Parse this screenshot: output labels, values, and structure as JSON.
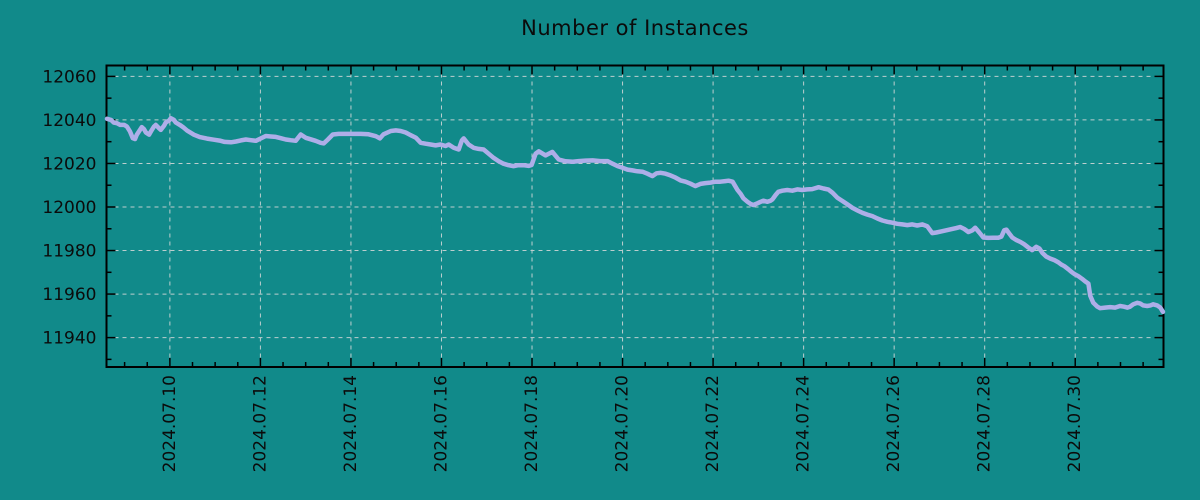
{
  "title": "Number of Instances",
  "colors": {
    "background": "#118a8a",
    "line": "#aeaee8",
    "grid": "#becfcf",
    "axis": "#000000",
    "text": "#0b0b0b"
  },
  "chart_data": {
    "type": "line",
    "title": "Number of Instances",
    "series_name": "Number of Instances",
    "x_unit": "day of July 2024 (fractional; 32.0 = Aug 1)",
    "xlabel": "",
    "ylabel": "",
    "grid": true,
    "legend": "none",
    "xlim": [
      8.6,
      31.95
    ],
    "ylim": [
      11926.5,
      12065.0
    ],
    "yticks": [
      11940,
      11960,
      11980,
      12000,
      12020,
      12040,
      12060
    ],
    "y_minor_step": 10,
    "x_minor_step": 0.5,
    "xticks": [
      {
        "value": 10,
        "label": "2024.07.10"
      },
      {
        "value": 12,
        "label": "2024.07.12"
      },
      {
        "value": 14,
        "label": "2024.07.14"
      },
      {
        "value": 16,
        "label": "2024.07.16"
      },
      {
        "value": 18,
        "label": "2024.07.18"
      },
      {
        "value": 20,
        "label": "2024.07.20"
      },
      {
        "value": 22,
        "label": "2024.07.22"
      },
      {
        "value": 24,
        "label": "2024.07.24"
      },
      {
        "value": 26,
        "label": "2024.07.26"
      },
      {
        "value": 28,
        "label": "2024.07.28"
      },
      {
        "value": 30,
        "label": "2024.07.30"
      }
    ],
    "points_format": "[day_of_july_2024, instances]",
    "points": [
      [
        8.61,
        12040.5
      ],
      [
        8.7,
        12040.0
      ],
      [
        8.76,
        12038.8
      ],
      [
        8.83,
        12038.5
      ],
      [
        8.9,
        12037.7
      ],
      [
        8.99,
        12037.7
      ],
      [
        9.05,
        12037.0
      ],
      [
        9.12,
        12034.7
      ],
      [
        9.18,
        12031.6
      ],
      [
        9.23,
        12031.2
      ],
      [
        9.27,
        12033.2
      ],
      [
        9.34,
        12035.4
      ],
      [
        9.38,
        12036.7
      ],
      [
        9.43,
        12035.7
      ],
      [
        9.47,
        12034.2
      ],
      [
        9.54,
        12033.2
      ],
      [
        9.58,
        12034.7
      ],
      [
        9.65,
        12037.0
      ],
      [
        9.69,
        12037.7
      ],
      [
        9.76,
        12036.2
      ],
      [
        9.8,
        12035.4
      ],
      [
        9.87,
        12037.3
      ],
      [
        9.91,
        12038.8
      ],
      [
        9.98,
        12039.7
      ],
      [
        10.02,
        12040.8
      ],
      [
        10.09,
        12040.0
      ],
      [
        10.13,
        12038.8
      ],
      [
        10.22,
        12037.7
      ],
      [
        10.29,
        12036.7
      ],
      [
        10.38,
        12035.1
      ],
      [
        10.53,
        12033.2
      ],
      [
        10.66,
        12032.1
      ],
      [
        10.82,
        12031.4
      ],
      [
        10.97,
        12030.9
      ],
      [
        11.1,
        12030.5
      ],
      [
        11.21,
        12029.9
      ],
      [
        11.35,
        12029.7
      ],
      [
        11.46,
        12030.1
      ],
      [
        11.57,
        12030.6
      ],
      [
        11.68,
        12031.0
      ],
      [
        11.79,
        12030.7
      ],
      [
        11.9,
        12030.4
      ],
      [
        12.01,
        12031.5
      ],
      [
        12.12,
        12032.6
      ],
      [
        12.23,
        12032.4
      ],
      [
        12.34,
        12032.2
      ],
      [
        12.45,
        12031.6
      ],
      [
        12.56,
        12031.0
      ],
      [
        12.67,
        12030.7
      ],
      [
        12.78,
        12030.4
      ],
      [
        12.89,
        12033.3
      ],
      [
        13.0,
        12031.8
      ],
      [
        13.11,
        12031.1
      ],
      [
        13.22,
        12030.4
      ],
      [
        13.33,
        12029.5
      ],
      [
        13.4,
        12029.2
      ],
      [
        13.49,
        12031.0
      ],
      [
        13.6,
        12033.3
      ],
      [
        13.73,
        12033.6
      ],
      [
        13.89,
        12033.6
      ],
      [
        14.04,
        12033.6
      ],
      [
        14.22,
        12033.6
      ],
      [
        14.39,
        12033.4
      ],
      [
        14.55,
        12032.5
      ],
      [
        14.64,
        12031.5
      ],
      [
        14.72,
        12033.4
      ],
      [
        14.88,
        12034.9
      ],
      [
        14.99,
        12035.2
      ],
      [
        15.1,
        12034.9
      ],
      [
        15.21,
        12034.2
      ],
      [
        15.32,
        12033.0
      ],
      [
        15.43,
        12031.9
      ],
      [
        15.54,
        12029.5
      ],
      [
        15.65,
        12029.1
      ],
      [
        15.76,
        12028.7
      ],
      [
        15.87,
        12028.3
      ],
      [
        15.98,
        12028.7
      ],
      [
        16.09,
        12028.0
      ],
      [
        16.16,
        12028.7
      ],
      [
        16.27,
        12027.2
      ],
      [
        16.38,
        12026.4
      ],
      [
        16.45,
        12030.6
      ],
      [
        16.49,
        12031.5
      ],
      [
        16.6,
        12028.7
      ],
      [
        16.71,
        12027.2
      ],
      [
        16.82,
        12026.7
      ],
      [
        16.93,
        12026.4
      ],
      [
        17.04,
        12024.5
      ],
      [
        17.15,
        12022.6
      ],
      [
        17.26,
        12021.1
      ],
      [
        17.37,
        12019.9
      ],
      [
        17.48,
        12019.2
      ],
      [
        17.59,
        12018.8
      ],
      [
        17.7,
        12019.2
      ],
      [
        17.81,
        12019.2
      ],
      [
        17.93,
        12018.9
      ],
      [
        17.99,
        12019.3
      ],
      [
        18.08,
        12024.5
      ],
      [
        18.15,
        12025.6
      ],
      [
        18.3,
        12023.7
      ],
      [
        18.45,
        12025.3
      ],
      [
        18.59,
        12021.8
      ],
      [
        18.74,
        12021.0
      ],
      [
        18.9,
        12020.8
      ],
      [
        19.03,
        12021.1
      ],
      [
        19.18,
        12021.3
      ],
      [
        19.34,
        12021.4
      ],
      [
        19.51,
        12021.1
      ],
      [
        19.67,
        12021.1
      ],
      [
        19.78,
        12019.9
      ],
      [
        19.89,
        12018.8
      ],
      [
        20.0,
        12018.0
      ],
      [
        20.11,
        12017.2
      ],
      [
        20.22,
        12016.8
      ],
      [
        20.33,
        12016.4
      ],
      [
        20.44,
        12016.2
      ],
      [
        20.55,
        12015.3
      ],
      [
        20.66,
        12014.2
      ],
      [
        20.75,
        12015.5
      ],
      [
        20.84,
        12015.7
      ],
      [
        20.95,
        12015.3
      ],
      [
        21.06,
        12014.5
      ],
      [
        21.17,
        12013.5
      ],
      [
        21.28,
        12012.2
      ],
      [
        21.39,
        12011.6
      ],
      [
        21.5,
        12010.7
      ],
      [
        21.61,
        12009.6
      ],
      [
        21.72,
        12010.6
      ],
      [
        21.83,
        12011.0
      ],
      [
        21.94,
        12011.2
      ],
      [
        22.05,
        12011.6
      ],
      [
        22.16,
        12011.6
      ],
      [
        22.27,
        12011.9
      ],
      [
        22.34,
        12012.1
      ],
      [
        22.43,
        12011.6
      ],
      [
        22.54,
        12007.8
      ],
      [
        22.61,
        12006.0
      ],
      [
        22.67,
        12004.0
      ],
      [
        22.76,
        12002.4
      ],
      [
        22.83,
        12001.4
      ],
      [
        22.89,
        12000.9
      ],
      [
        22.98,
        12001.7
      ],
      [
        23.05,
        12002.4
      ],
      [
        23.11,
        12002.9
      ],
      [
        23.2,
        12002.4
      ],
      [
        23.27,
        12002.9
      ],
      [
        23.31,
        12003.5
      ],
      [
        23.38,
        12005.5
      ],
      [
        23.44,
        12007.0
      ],
      [
        23.53,
        12007.5
      ],
      [
        23.64,
        12007.8
      ],
      [
        23.75,
        12007.5
      ],
      [
        23.86,
        12008.1
      ],
      [
        23.97,
        12007.8
      ],
      [
        24.08,
        12008.1
      ],
      [
        24.19,
        12008.2
      ],
      [
        24.33,
        12009.1
      ],
      [
        24.44,
        12008.5
      ],
      [
        24.55,
        12008.0
      ],
      [
        24.64,
        12006.5
      ],
      [
        24.75,
        12004.2
      ],
      [
        24.86,
        12002.7
      ],
      [
        24.97,
        12001.2
      ],
      [
        25.08,
        11999.6
      ],
      [
        25.19,
        11998.4
      ],
      [
        25.3,
        11997.3
      ],
      [
        25.41,
        11996.5
      ],
      [
        25.52,
        11995.8
      ],
      [
        25.63,
        11994.7
      ],
      [
        25.74,
        11993.8
      ],
      [
        25.85,
        11993.2
      ],
      [
        25.96,
        11992.8
      ],
      [
        26.07,
        11992.3
      ],
      [
        26.18,
        11992.0
      ],
      [
        26.29,
        11991.7
      ],
      [
        26.4,
        11992.0
      ],
      [
        26.51,
        11991.5
      ],
      [
        26.62,
        11992.0
      ],
      [
        26.73,
        11991.2
      ],
      [
        26.84,
        11988.0
      ],
      [
        26.93,
        11988.3
      ],
      [
        27.04,
        11988.8
      ],
      [
        27.15,
        11989.3
      ],
      [
        27.26,
        11989.8
      ],
      [
        27.37,
        11990.3
      ],
      [
        27.46,
        11990.8
      ],
      [
        27.55,
        11989.9
      ],
      [
        27.64,
        11988.5
      ],
      [
        27.73,
        11989.3
      ],
      [
        27.79,
        11990.5
      ],
      [
        27.88,
        11988.3
      ],
      [
        27.97,
        11986.0
      ],
      [
        28.08,
        11985.8
      ],
      [
        28.19,
        11985.9
      ],
      [
        28.3,
        11985.9
      ],
      [
        28.37,
        11986.4
      ],
      [
        28.43,
        11989.3
      ],
      [
        28.48,
        11989.6
      ],
      [
        28.54,
        11987.9
      ],
      [
        28.61,
        11986.0
      ],
      [
        28.7,
        11984.8
      ],
      [
        28.79,
        11983.9
      ],
      [
        28.87,
        11982.9
      ],
      [
        28.96,
        11981.5
      ],
      [
        29.05,
        11980.2
      ],
      [
        29.14,
        11981.7
      ],
      [
        29.21,
        11980.9
      ],
      [
        29.27,
        11979.0
      ],
      [
        29.36,
        11977.2
      ],
      [
        29.45,
        11976.3
      ],
      [
        29.54,
        11975.6
      ],
      [
        29.62,
        11974.7
      ],
      [
        29.69,
        11973.6
      ],
      [
        29.76,
        11972.8
      ],
      [
        29.85,
        11971.4
      ],
      [
        29.91,
        11970.3
      ],
      [
        29.98,
        11969.2
      ],
      [
        30.07,
        11968.2
      ],
      [
        30.15,
        11967.0
      ],
      [
        30.22,
        11965.8
      ],
      [
        30.29,
        11964.8
      ],
      [
        30.33,
        11959.3
      ],
      [
        30.4,
        11956.0
      ],
      [
        30.49,
        11954.2
      ],
      [
        30.55,
        11953.5
      ],
      [
        30.66,
        11953.8
      ],
      [
        30.77,
        11954.0
      ],
      [
        30.88,
        11953.8
      ],
      [
        30.99,
        11954.5
      ],
      [
        31.08,
        11954.2
      ],
      [
        31.15,
        11953.8
      ],
      [
        31.21,
        11954.2
      ],
      [
        31.28,
        11955.3
      ],
      [
        31.37,
        11956.0
      ],
      [
        31.43,
        11955.7
      ],
      [
        31.5,
        11954.8
      ],
      [
        31.59,
        11954.5
      ],
      [
        31.66,
        11954.8
      ],
      [
        31.72,
        11955.3
      ],
      [
        31.81,
        11954.8
      ],
      [
        31.88,
        11953.8
      ],
      [
        31.94,
        11951.8
      ]
    ]
  }
}
